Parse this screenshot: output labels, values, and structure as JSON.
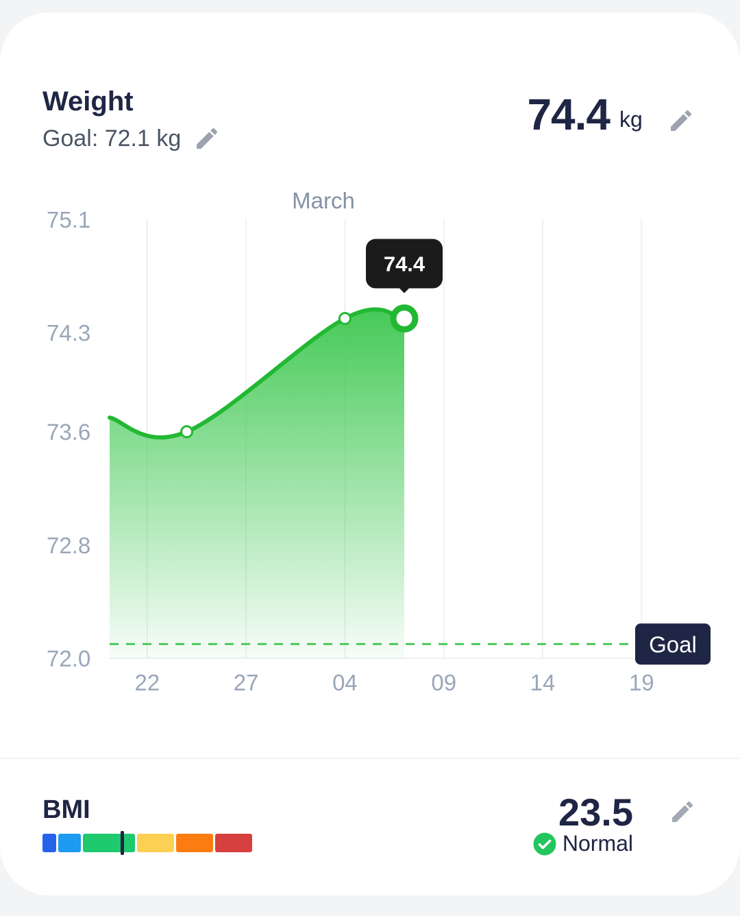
{
  "header": {
    "title": "Weight",
    "goal_label": "Goal: 72.1 kg",
    "current_value": "74.4",
    "current_unit": "kg"
  },
  "icons": {
    "edit": "pencil-icon",
    "status": "check-circle-icon"
  },
  "colors": {
    "accent_green": "#22b833",
    "goal_line": "#4cc95a",
    "dark": "#1f2544"
  },
  "chart_data": {
    "type": "area",
    "title": "",
    "month_label": "March",
    "xlabel": "",
    "ylabel": "",
    "y_ticks": [
      "75.1",
      "74.3",
      "73.6",
      "72.8",
      "72.0"
    ],
    "x_ticks": [
      "22",
      "27",
      "04",
      "09",
      "14",
      "19"
    ],
    "x_tick_days": [
      22,
      27,
      32,
      37,
      42,
      47
    ],
    "ylim": [
      72.0,
      75.1
    ],
    "xlim_days": [
      20.1,
      49.9
    ],
    "series": [
      {
        "x_days": [
          20.1,
          24,
          32,
          35
        ],
        "y": [
          73.7,
          73.6,
          74.4,
          74.4
        ]
      }
    ],
    "marker_days": [
      24,
      32,
      35
    ],
    "selected": {
      "x_day": 35,
      "label": "74.4"
    },
    "goal": {
      "value": 72.1,
      "label": "Goal"
    },
    "grid": true
  },
  "bmi": {
    "title": "BMI",
    "value": "23.5",
    "status": "Normal",
    "scale_segments": [
      {
        "color": "#2563eb"
      },
      {
        "color": "#1d9bf0"
      },
      {
        "color": "#1fc96e"
      },
      {
        "color": "#fcd053"
      },
      {
        "color": "#fb7d12"
      },
      {
        "color": "#d7403e"
      }
    ],
    "marker_fraction": 0.38
  }
}
